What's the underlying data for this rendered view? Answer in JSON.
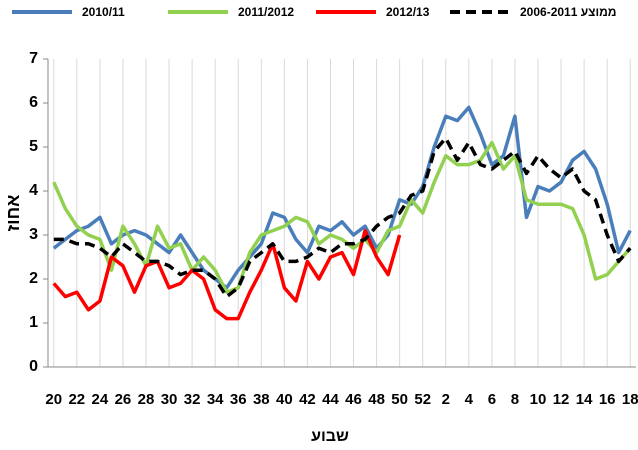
{
  "chart_data": {
    "type": "line",
    "x_label": "שבוע",
    "y_label": "אחוז",
    "categories": [
      "20",
      null,
      "22",
      null,
      "24",
      null,
      "26",
      null,
      "28",
      null,
      "30",
      null,
      "32",
      null,
      "34",
      null,
      "36",
      null,
      "38",
      null,
      "40",
      null,
      "42",
      null,
      "44",
      null,
      "46",
      null,
      "48",
      null,
      "50",
      null,
      "52",
      null,
      "2",
      null,
      "4",
      null,
      "6",
      null,
      "8",
      null,
      "10",
      null,
      "12",
      null,
      "14",
      null,
      "16",
      null,
      "18"
    ],
    "series": [
      {
        "name": "2010/11",
        "color": "#4a7ebb",
        "dashed": false,
        "values": [
          2.7,
          2.9,
          3.1,
          3.2,
          3.4,
          2.8,
          3.0,
          3.1,
          3.0,
          2.8,
          2.6,
          3.0,
          2.6,
          2.2,
          2.0,
          1.8,
          2.2,
          2.5,
          2.8,
          3.5,
          3.4,
          2.9,
          2.6,
          3.2,
          3.1,
          3.3,
          3.0,
          3.2,
          2.7,
          3.0,
          3.8,
          3.7,
          4.1,
          5.0,
          5.7,
          5.6,
          5.9,
          5.3,
          4.6,
          4.8,
          5.7,
          3.4,
          4.1,
          4.0,
          4.2,
          4.7,
          4.9,
          4.5,
          3.7,
          2.6,
          3.1
        ]
      },
      {
        "name": "2011/2012",
        "color": "#92d050",
        "dashed": false,
        "values": [
          4.2,
          3.6,
          3.2,
          3.0,
          2.9,
          2.2,
          3.2,
          2.8,
          2.3,
          3.2,
          2.7,
          2.8,
          2.2,
          2.5,
          2.2,
          1.7,
          1.8,
          2.6,
          3.0,
          3.1,
          3.2,
          3.4,
          3.3,
          2.8,
          3.0,
          2.9,
          2.7,
          2.9,
          2.6,
          3.1,
          3.2,
          3.8,
          3.5,
          4.2,
          4.8,
          4.6,
          4.6,
          4.7,
          5.1,
          4.5,
          4.8,
          3.8,
          3.7,
          3.7,
          3.7,
          3.6,
          3.0,
          2.0,
          2.1,
          2.4,
          2.7
        ]
      },
      {
        "name": "2012/13",
        "color": "#ff0000",
        "dashed": false,
        "values": [
          1.9,
          1.6,
          1.7,
          1.3,
          1.5,
          2.5,
          2.3,
          1.7,
          2.3,
          2.4,
          1.8,
          1.9,
          2.2,
          2.0,
          1.3,
          1.1,
          1.1,
          1.7,
          2.2,
          2.8,
          1.8,
          1.5,
          2.4,
          2.0,
          2.5,
          2.6,
          2.1,
          3.1,
          2.5,
          2.1,
          3.0,
          null,
          null,
          null,
          null,
          null,
          null,
          null,
          null,
          null,
          null,
          null,
          null,
          null,
          null,
          null,
          null,
          null,
          null,
          null,
          null
        ]
      },
      {
        "name": "ממוצע 2006-2011",
        "color": "#000000",
        "dashed": true,
        "values": [
          2.9,
          2.9,
          2.8,
          2.8,
          2.7,
          2.5,
          2.8,
          2.6,
          2.4,
          2.4,
          2.3,
          2.1,
          2.2,
          2.2,
          2.0,
          1.6,
          1.8,
          2.4,
          2.6,
          2.8,
          2.4,
          2.4,
          2.5,
          2.7,
          2.6,
          2.8,
          2.8,
          2.9,
          3.2,
          3.4,
          3.5,
          3.9,
          4.0,
          4.9,
          5.2,
          4.7,
          5.1,
          4.6,
          4.5,
          4.7,
          4.9,
          4.4,
          4.8,
          4.5,
          4.3,
          4.5,
          4.0,
          3.8,
          3.0,
          2.4,
          2.7
        ]
      }
    ],
    "ylim": [
      0,
      7
    ],
    "yticks": [
      0,
      1,
      2,
      3,
      4,
      5,
      6,
      7
    ],
    "grid": true,
    "legend": "top"
  }
}
